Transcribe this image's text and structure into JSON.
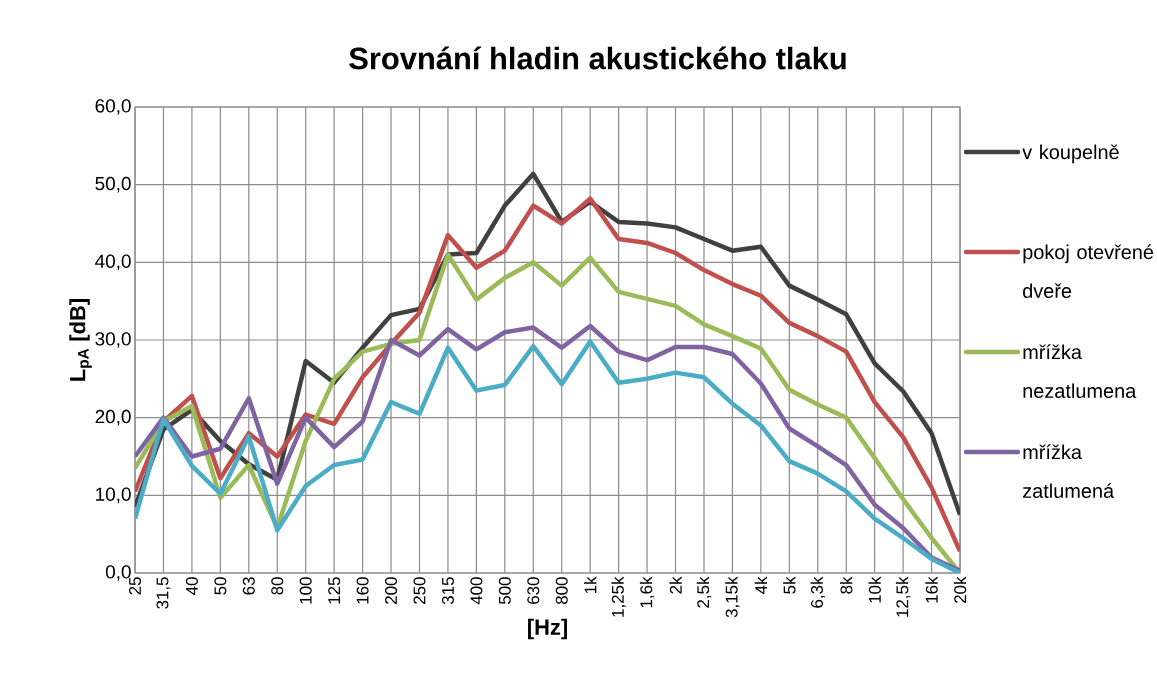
{
  "chart_data": {
    "type": "line",
    "title": "Srovnání hladin akustického tlaku",
    "xlabel": "[Hz]",
    "ylabel": "L$_{pA}$ [dB]",
    "categories": [
      "25",
      "31,5",
      "40",
      "50",
      "63",
      "80",
      "100",
      "125",
      "160",
      "200",
      "250",
      "315",
      "400",
      "500",
      "630",
      "800",
      "1k",
      "1,25k",
      "1,6k",
      "2k",
      "2,5k",
      "3,15k",
      "4k",
      "5k",
      "6,3k",
      "8k",
      "10k",
      "12,5k",
      "16k",
      "20k"
    ],
    "ylim": [
      0,
      60
    ],
    "yticks": [
      {
        "value": 0,
        "label": "0,0"
      },
      {
        "value": 10,
        "label": "10,0"
      },
      {
        "value": 20,
        "label": "20,0"
      },
      {
        "value": 30,
        "label": "30,0"
      },
      {
        "value": 40,
        "label": "40,0"
      },
      {
        "value": 50,
        "label": "50,0"
      },
      {
        "value": 60,
        "label": "60,0"
      }
    ],
    "grid": true,
    "legend": "right",
    "marker": "none",
    "line_style": "solid",
    "series": [
      {
        "name": "v koupelně",
        "color": "#404040",
        "values": [
          8.5,
          18.5,
          21,
          17,
          14,
          12,
          27.3,
          24.5,
          29,
          33.2,
          34,
          41,
          41.2,
          47.3,
          51.4,
          45.2,
          47.8,
          45.2,
          45,
          44.5,
          43,
          41.5,
          42,
          37,
          35.2,
          33.3,
          27,
          23.4,
          18,
          7.5
        ]
      },
      {
        "name": "pokoj otevřené dveře",
        "color": "#c0504d",
        "values": [
          10.5,
          19.5,
          22.8,
          12.2,
          18,
          15,
          20.4,
          19.2,
          25.2,
          29.5,
          33.5,
          43.5,
          39.3,
          41.5,
          47.3,
          45,
          48.2,
          43,
          42.5,
          41.2,
          39,
          37.2,
          35.7,
          32.2,
          30.5,
          28.5,
          22,
          17.5,
          11,
          2.8
        ]
      },
      {
        "name": "mřížka nezatlumena",
        "color": "#9bbb59",
        "values": [
          13.5,
          19.5,
          21.5,
          9.7,
          13.9,
          5.8,
          17,
          25,
          28.5,
          29.5,
          30,
          41,
          35.2,
          38,
          40,
          37,
          40.6,
          36.2,
          35.3,
          34.4,
          32,
          30.5,
          28.9,
          23.6,
          21.7,
          20,
          14.8,
          9.5,
          4.5,
          0
        ]
      },
      {
        "name": "mřížka zatlumená",
        "color": "#8064a2",
        "values": [
          15,
          20,
          15,
          16,
          22.5,
          11.5,
          20,
          16.2,
          19.5,
          30,
          28,
          31.4,
          28.8,
          31,
          31.6,
          29,
          31.8,
          28.5,
          27.4,
          29.1,
          29.1,
          28.2,
          24.4,
          18.6,
          16.3,
          13.9,
          8.8,
          5.8,
          2,
          0.3
        ]
      },
      {
        "color": "#4bacc6",
        "values": [
          7,
          19.8,
          13.8,
          10.2,
          17.6,
          5.5,
          11.2,
          13.9,
          14.6,
          22,
          20.5,
          29,
          23.5,
          24.2,
          29.2,
          24.3,
          29.8,
          24.5,
          25,
          25.8,
          25.2,
          21.8,
          19,
          14.4,
          12.8,
          10.5,
          7,
          4.5,
          1.8,
          0
        ]
      }
    ]
  }
}
